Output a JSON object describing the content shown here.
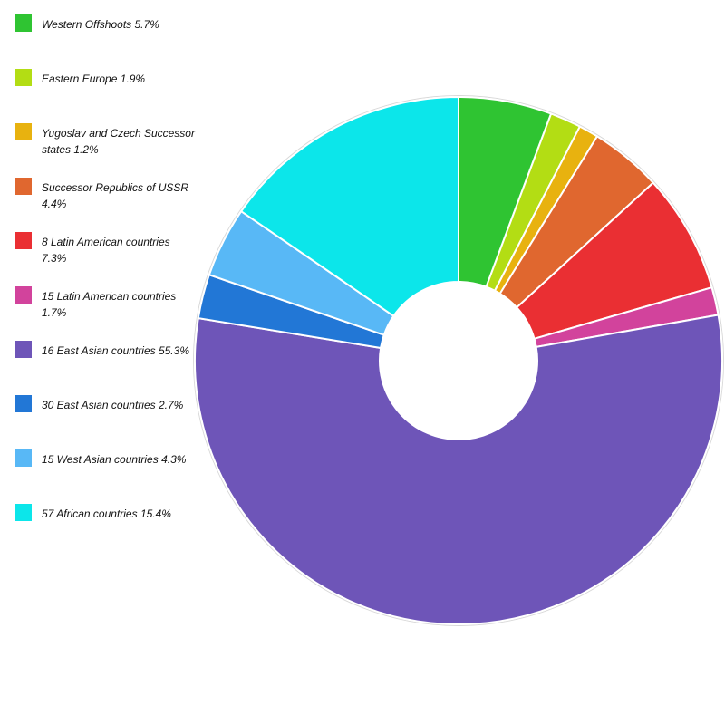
{
  "chart_data": {
    "type": "pie",
    "title": "",
    "categories": [
      "Western Offshoots",
      "Eastern Europe",
      "Yugoslav and Czech Successor states",
      "Successor Republics of USSR",
      "8 Latin American countries",
      "15 Latin American countries",
      "16 East Asian countries",
      "30 East Asian countries",
      "15 West Asian countries",
      "57 African countries"
    ],
    "values": [
      5.7,
      1.9,
      1.2,
      4.4,
      7.3,
      1.7,
      55.3,
      2.7,
      4.3,
      15.4
    ],
    "legend_labels": [
      "Western Offshoots 5.7%",
      "Eastern Europe 1.9%",
      "Yugoslav and Czech Successor states 1.2%",
      "Successor Republics of USSR 4.4%",
      "8 Latin American countries 7.3%",
      "15 Latin American countries 1.7%",
      "16 East Asian countries 55.3%",
      "30 East Asian countries 2.7%",
      "15 West Asian countries 4.3%",
      "57 African countries 15.4%"
    ],
    "colors": [
      "#2fc432",
      "#b3dd14",
      "#e8b20f",
      "#e0672f",
      "#ea2f33",
      "#d2439c",
      "#6e55b8",
      "#2277d6",
      "#58b8f6",
      "#0ce6ea"
    ],
    "legend_placement": "left",
    "donut": true
  }
}
